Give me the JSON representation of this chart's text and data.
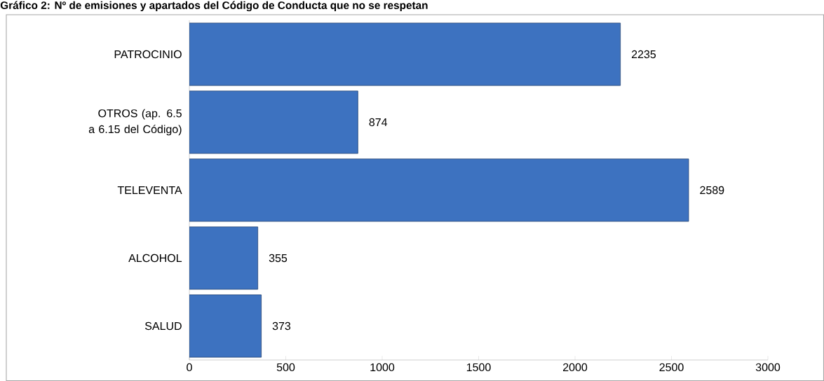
{
  "chart_data": {
    "type": "bar",
    "orientation": "horizontal",
    "title": "Gráfico 2: Nº de emisiones y apartados del Código de Conducta que no se respetan",
    "categories": [
      "PATROCINIO",
      "OTROS (ap. 6.5 a 6.15 del Código)",
      "TELEVENTA",
      "ALCOHOL",
      "SALUD"
    ],
    "values": [
      2235,
      874,
      2589,
      355,
      373
    ],
    "color": "#3d72c0",
    "xlim": [
      0,
      3000
    ],
    "xticks": [
      0,
      500,
      1000,
      1500,
      2000,
      2500,
      3000
    ],
    "data_labels": true,
    "grid": false
  }
}
